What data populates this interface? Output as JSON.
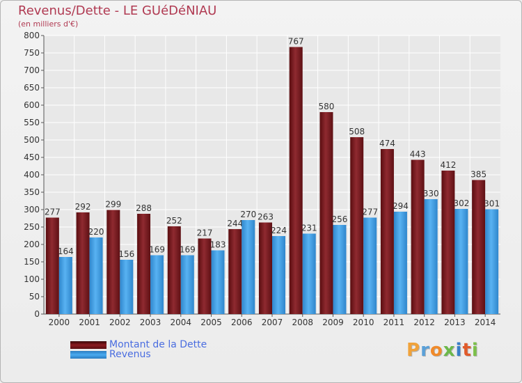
{
  "title": "Revenus/Dette - LE GUéDéNIAU",
  "subtitle": "(en milliers d'€)",
  "chart_data": {
    "type": "bar",
    "title": "Revenus/Dette - LE GUéDéNIAU",
    "subtitle": "(en milliers d'€)",
    "xlabel": "",
    "ylabel": "",
    "ylim": [
      0,
      800
    ],
    "ytick_step": 50,
    "grid": true,
    "legend_position": "bottom-left",
    "categories": [
      "2000",
      "2001",
      "2002",
      "2003",
      "2004",
      "2005",
      "2006",
      "2007",
      "2008",
      "2009",
      "2010",
      "2011",
      "2012",
      "2013",
      "2014"
    ],
    "series": [
      {
        "name": "Montant de la Dette",
        "color": "#8b1a1f",
        "values": [
          277,
          292,
          299,
          288,
          252,
          217,
          244,
          263,
          767,
          580,
          508,
          474,
          443,
          412,
          385
        ]
      },
      {
        "name": "Revenus",
        "color": "#3f9ee3",
        "values": [
          164,
          220,
          156,
          169,
          169,
          183,
          270,
          224,
          231,
          256,
          277,
          294,
          330,
          302,
          301
        ]
      }
    ]
  },
  "legend": {
    "debt_label": "Montant de la Dette",
    "revenue_label": "Revenus"
  },
  "logo": {
    "letters": [
      "P",
      "r",
      "o",
      "x",
      "i",
      "t",
      "i"
    ],
    "colors": [
      "#f0a23a",
      "#5aa0d8",
      "#f08a2a",
      "#6cb84a",
      "#3a7fc8",
      "#e05a2a",
      "#7cc04a"
    ]
  }
}
